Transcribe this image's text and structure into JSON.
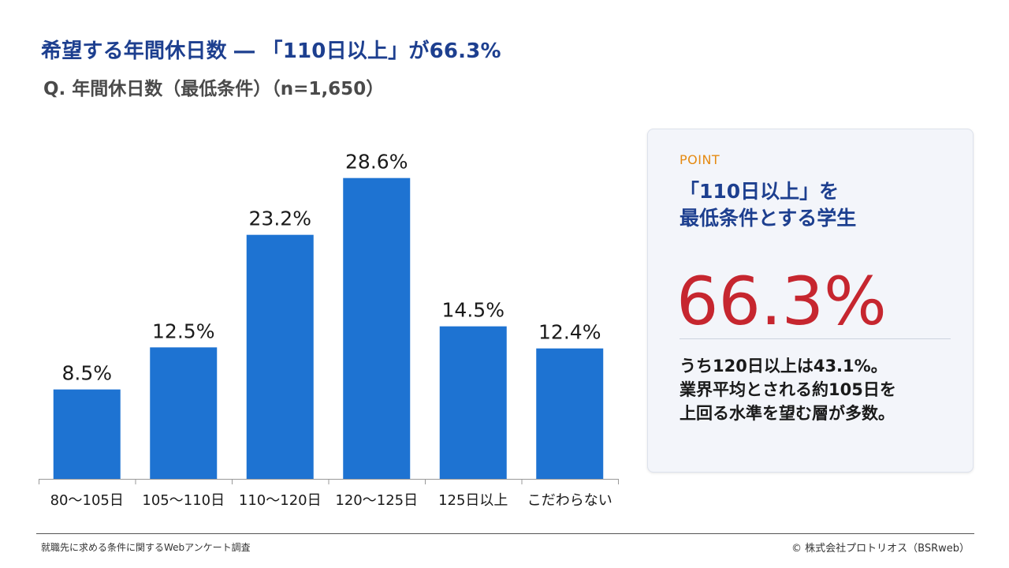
{
  "header": {
    "title": "希望する年間休日数 ― 「110日以上」が66.3%",
    "subtitle": "Q. 年間休日数（最低条件）（n=1,650）"
  },
  "chart_data": {
    "type": "bar",
    "categories": [
      "80〜105日",
      "105〜110日",
      "110〜120日",
      "120〜125日",
      "125日以上",
      "こだわらない"
    ],
    "values": [
      8.5,
      12.5,
      23.2,
      28.6,
      14.5,
      12.4
    ],
    "value_labels": [
      "8.5%",
      "12.5%",
      "23.2%",
      "28.6%",
      "14.5%",
      "12.4%"
    ],
    "ylim": [
      0,
      30
    ],
    "grid": false,
    "bar_color": "#1e73d2"
  },
  "point": {
    "label": "POINT",
    "heading_line1": "「110日以上」を",
    "heading_line2": "最低条件とする学生",
    "big_value": "66.3%",
    "body_line1": "うち120日以上は43.1%。",
    "body_line2": "業界平均とされる約105日を",
    "body_line3": "上回る水準を望む層が多数。"
  },
  "footer": {
    "source": "就職先に求める条件に関するWebアンケート調査",
    "copyright": "©  株式会社プロトリオス（BSRweb）"
  },
  "colors": {
    "title": "#1d3f8f",
    "accent_orange": "#e58a12",
    "highlight_red": "#c6262f",
    "bar": "#1e73d2"
  }
}
